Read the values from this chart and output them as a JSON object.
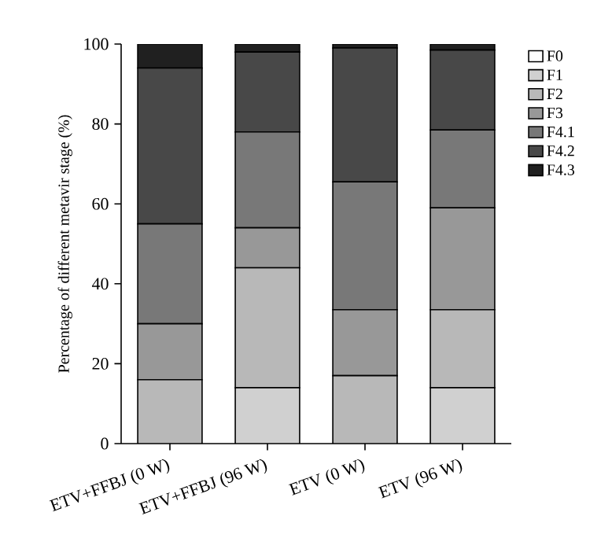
{
  "chart_data": {
    "type": "bar",
    "stacked": true,
    "ylabel": "Percentage of different metavir stage (%)",
    "categories": [
      "ETV+FFBJ (0 W)",
      "ETV+FFBJ (96 W)",
      "ETV (0 W)",
      "ETV (96 W)"
    ],
    "series": [
      {
        "name": "F0",
        "color": "#ffffff",
        "values": [
          0,
          0,
          0,
          0
        ]
      },
      {
        "name": "F1",
        "color": "#d0d0d0",
        "values": [
          0,
          14,
          0,
          14
        ]
      },
      {
        "name": "F2",
        "color": "#b8b8b8",
        "values": [
          16,
          30,
          17,
          19.5
        ]
      },
      {
        "name": "F3",
        "color": "#989898",
        "values": [
          14,
          10,
          16.5,
          25.5
        ]
      },
      {
        "name": "F4.1",
        "color": "#787878",
        "values": [
          25,
          24,
          32,
          19.5
        ]
      },
      {
        "name": "F4.2",
        "color": "#484848",
        "values": [
          39,
          20,
          33.5,
          20
        ]
      },
      {
        "name": "F4.3",
        "color": "#202020",
        "values": [
          6,
          2,
          1,
          1.5
        ]
      }
    ],
    "ylim": [
      0,
      100
    ],
    "yticks": [
      0,
      20,
      40,
      60,
      80,
      100
    ],
    "grid": false,
    "legend": "top right"
  }
}
